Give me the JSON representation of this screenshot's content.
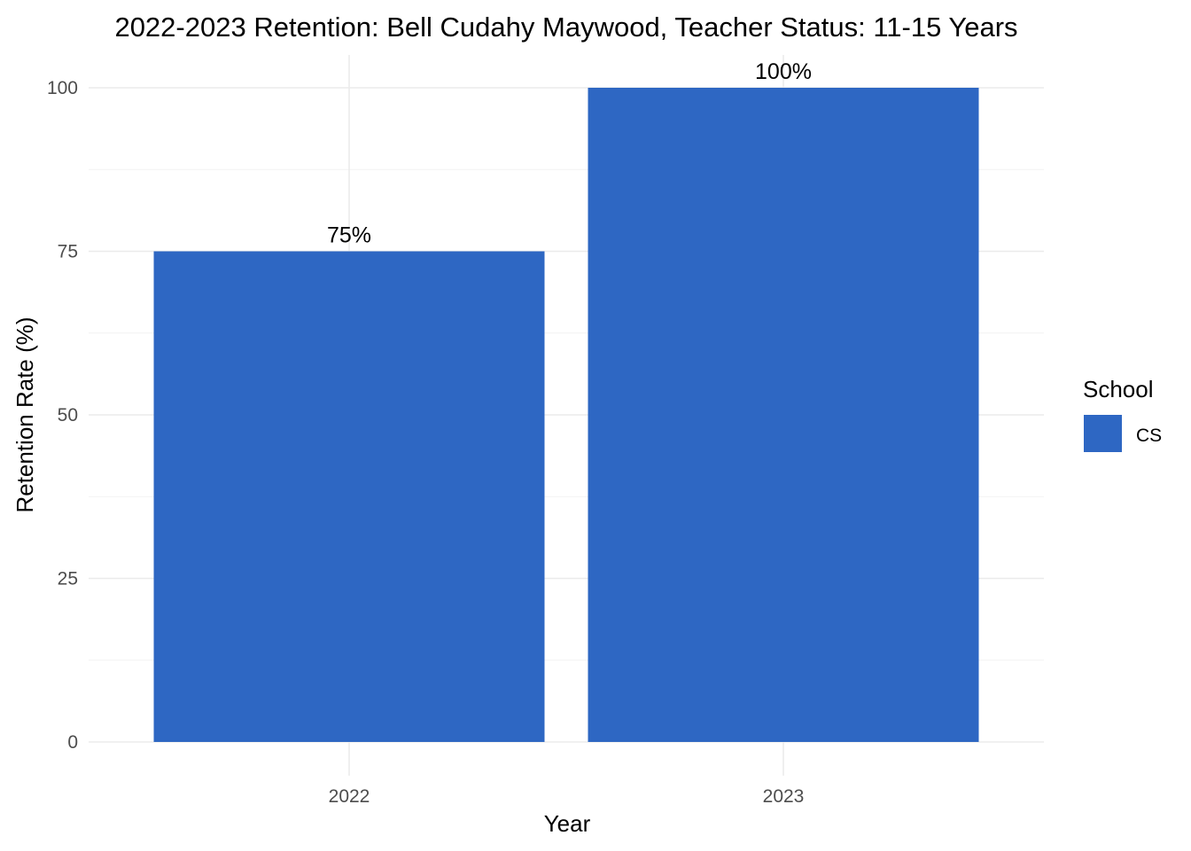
{
  "chart_data": {
    "type": "bar",
    "title": "2022-2023 Retention: Bell Cudahy Maywood, Teacher Status: 11-15 Years",
    "xlabel": "Year",
    "ylabel": "Retention Rate (%)",
    "categories": [
      "2022",
      "2023"
    ],
    "series": [
      {
        "name": "CS",
        "values": [
          75,
          100
        ],
        "labels": [
          "75%",
          "100%"
        ],
        "color": "#2e67c3"
      }
    ],
    "ylim": [
      0,
      100
    ],
    "yticks": [
      0,
      25,
      50,
      75,
      100
    ],
    "ytick_labels": [
      "0",
      "25",
      "50",
      "75",
      "100"
    ],
    "grid": true,
    "legend": {
      "title": "School",
      "position": "right"
    }
  }
}
